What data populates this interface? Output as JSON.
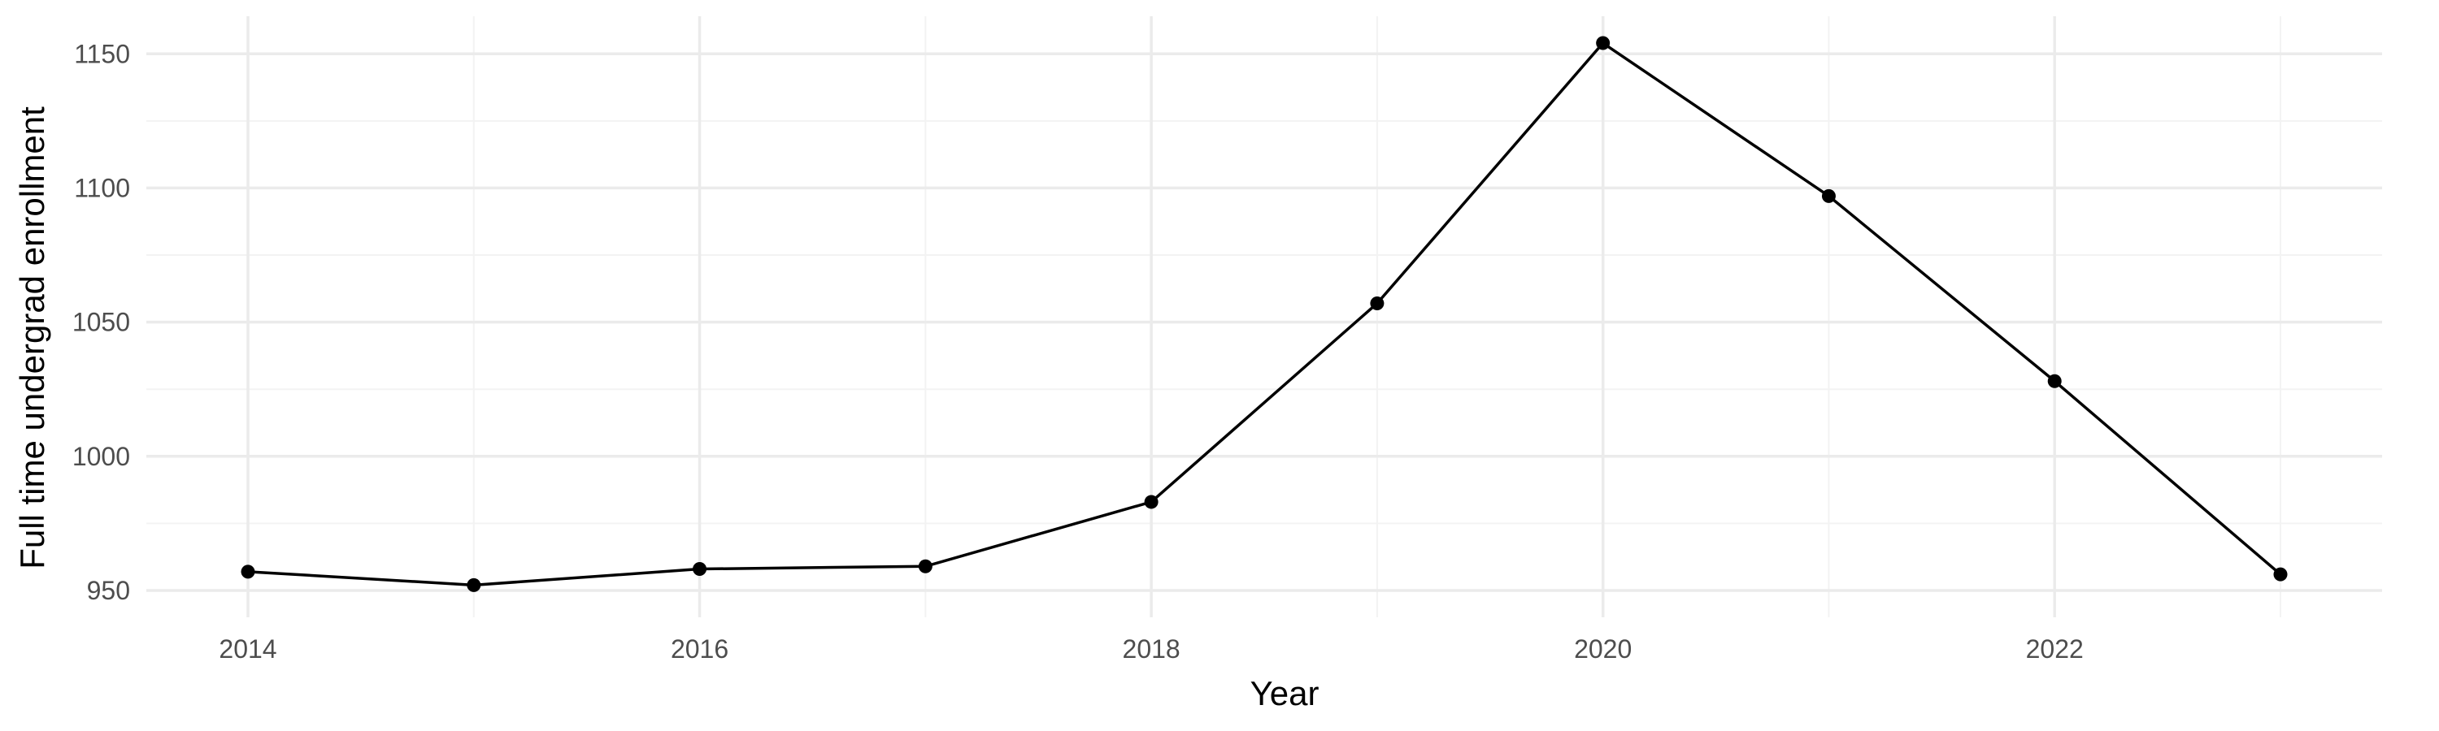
{
  "chart_data": {
    "type": "line",
    "title": "",
    "xlabel": "Year",
    "ylabel": "Full time undergrad enrollment",
    "x": [
      2014,
      2015,
      2016,
      2017,
      2018,
      2019,
      2020,
      2021,
      2022,
      2023
    ],
    "series": [
      {
        "values": [
          957,
          952,
          958,
          959,
          983,
          1057,
          1154,
          1097,
          1028,
          956
        ]
      }
    ],
    "xlim": [
      2013.55,
      2023.45
    ],
    "ylim": [
      940,
      1164
    ],
    "x_ticks": [
      2014,
      2016,
      2018,
      2020,
      2022
    ],
    "x_tick_labels": [
      "2014",
      "2016",
      "2018",
      "2020",
      "2022"
    ],
    "x_minor_ticks": [
      2015,
      2017,
      2019,
      2021,
      2023
    ],
    "y_ticks": [
      950,
      1000,
      1050,
      1100,
      1150
    ],
    "y_tick_labels": [
      "950",
      "1000",
      "1050",
      "1100",
      "1150"
    ],
    "y_minor_ticks": [
      975,
      1025,
      1075,
      1125
    ],
    "grid": true,
    "legend": "none",
    "colors": {
      "line": "#000000",
      "point": "#000000",
      "grid_major": "#ebebeb",
      "grid_minor": "#f3f3f3",
      "tick_text": "#4d4d4d",
      "axis_title": "#000000"
    }
  }
}
